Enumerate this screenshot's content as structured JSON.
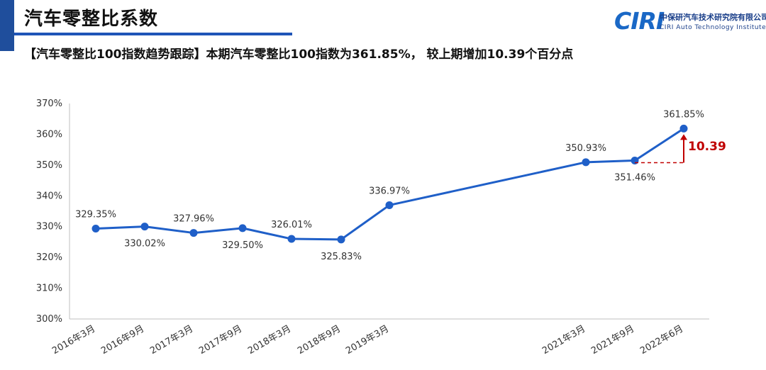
{
  "header": {
    "title": "汽车零整比系数",
    "subtitle": "【汽车零整比100指数趋势跟踪】本期汽车零整比100指数为361.85%， 较上期增加10.39个百分点"
  },
  "logo": {
    "mark": "CIRI",
    "cn_name": "中保研汽车技术研究院有限公司",
    "en_name": "CIRI Auto Technology Institute"
  },
  "colors": {
    "line": "#1f5fc8",
    "accent": "#c00000",
    "title_rule": "#1f55b8"
  },
  "chart_data": {
    "type": "line",
    "categories": [
      "2016年3月",
      "2016年9月",
      "2017年3月",
      "2017年9月",
      "2018年3月",
      "2018年9月",
      "2019年3月",
      "2021年3月",
      "2021年9月",
      "2022年6月"
    ],
    "values": [
      329.35,
      330.02,
      327.96,
      329.5,
      326.01,
      325.83,
      336.97,
      350.93,
      351.46,
      361.85
    ],
    "value_labels": [
      "329.35%",
      "330.02%",
      "327.96%",
      "329.50%",
      "326.01%",
      "325.83%",
      "336.97%",
      "350.93%",
      "351.46%",
      "361.85%"
    ],
    "label_position": [
      "above",
      "below",
      "above",
      "below",
      "above",
      "below",
      "above",
      "above",
      "below",
      "above"
    ],
    "yticks": [
      "300%",
      "310%",
      "320%",
      "330%",
      "340%",
      "350%",
      "360%",
      "370%"
    ],
    "ylim": [
      300,
      370
    ],
    "y_unit": "%",
    "annotation": {
      "text": "10.39",
      "from": 351.46,
      "to": 361.85
    },
    "grid": false,
    "legend": "none"
  }
}
